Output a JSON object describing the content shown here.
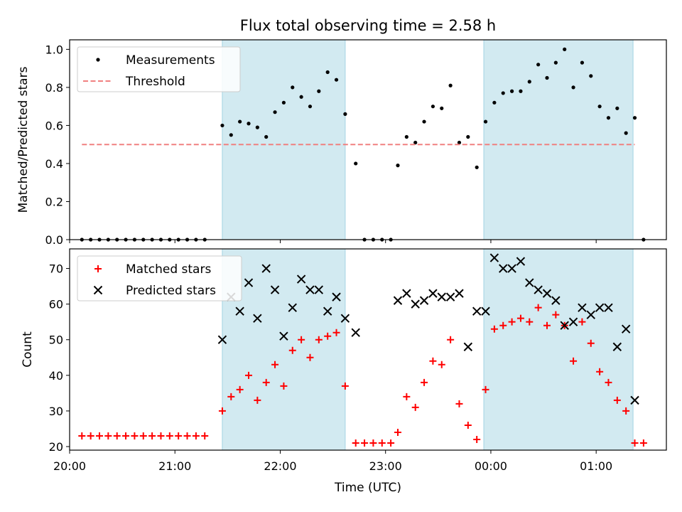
{
  "chart_data": [
    {
      "type": "scatter",
      "title": "Flux total observing time = 2.58 h",
      "xlabel": "",
      "ylabel": "Matched/Predicted stars",
      "ylim": [
        0,
        1.05
      ],
      "yticks": [
        "0.0",
        "0.2",
        "0.4",
        "0.6",
        "0.8",
        "1.0"
      ],
      "xlim": [
        "20:00",
        "01:40"
      ],
      "show_xtick_labels": false,
      "grid": false,
      "legend_position": "top-left",
      "shaded_intervals": [
        [
          "21:27",
          "22:37"
        ],
        [
          "23:56",
          "01:21"
        ]
      ],
      "series": [
        {
          "name": "Measurements",
          "marker": "dot",
          "color": "#000000",
          "points": [
            [
              "20:07",
              0.0
            ],
            [
              "20:12",
              0.0
            ],
            [
              "20:17",
              0.0
            ],
            [
              "20:22",
              0.0
            ],
            [
              "20:27",
              0.0
            ],
            [
              "20:32",
              0.0
            ],
            [
              "20:37",
              0.0
            ],
            [
              "20:42",
              0.0
            ],
            [
              "20:47",
              0.0
            ],
            [
              "20:52",
              0.0
            ],
            [
              "20:57",
              0.0
            ],
            [
              "21:02",
              0.0
            ],
            [
              "21:07",
              0.0
            ],
            [
              "21:12",
              0.0
            ],
            [
              "21:17",
              0.0
            ],
            [
              "21:27",
              0.6
            ],
            [
              "21:32",
              0.55
            ],
            [
              "21:37",
              0.62
            ],
            [
              "21:42",
              0.61
            ],
            [
              "21:47",
              0.59
            ],
            [
              "21:52",
              0.54
            ],
            [
              "21:57",
              0.67
            ],
            [
              "22:02",
              0.72
            ],
            [
              "22:07",
              0.8
            ],
            [
              "22:12",
              0.75
            ],
            [
              "22:17",
              0.7
            ],
            [
              "22:22",
              0.78
            ],
            [
              "22:27",
              0.88
            ],
            [
              "22:32",
              0.84
            ],
            [
              "22:37",
              0.66
            ],
            [
              "22:43",
              0.4
            ],
            [
              "22:48",
              0.0
            ],
            [
              "22:53",
              0.0
            ],
            [
              "22:58",
              0.0
            ],
            [
              "23:03",
              0.0
            ],
            [
              "23:07",
              0.39
            ],
            [
              "23:12",
              0.54
            ],
            [
              "23:17",
              0.51
            ],
            [
              "23:22",
              0.62
            ],
            [
              "23:27",
              0.7
            ],
            [
              "23:32",
              0.69
            ],
            [
              "23:37",
              0.81
            ],
            [
              "23:42",
              0.51
            ],
            [
              "23:47",
              0.54
            ],
            [
              "23:52",
              0.38
            ],
            [
              "23:57",
              0.62
            ],
            [
              "00:02",
              0.72
            ],
            [
              "00:07",
              0.77
            ],
            [
              "00:12",
              0.78
            ],
            [
              "00:17",
              0.78
            ],
            [
              "00:22",
              0.83
            ],
            [
              "00:27",
              0.92
            ],
            [
              "00:32",
              0.85
            ],
            [
              "00:37",
              0.93
            ],
            [
              "00:42",
              1.0
            ],
            [
              "00:47",
              0.8
            ],
            [
              "00:52",
              0.93
            ],
            [
              "00:57",
              0.86
            ],
            [
              "01:02",
              0.7
            ],
            [
              "01:07",
              0.64
            ],
            [
              "01:12",
              0.69
            ],
            [
              "01:17",
              0.56
            ],
            [
              "01:22",
              0.64
            ],
            [
              "01:27",
              0.0
            ]
          ]
        },
        {
          "name": "Threshold",
          "marker": "dashed-line",
          "color": "#f08080",
          "points": [
            [
              "20:07",
              0.5
            ],
            [
              "01:22",
              0.5
            ]
          ]
        }
      ]
    },
    {
      "type": "scatter",
      "title": "",
      "xlabel": "Time (UTC)",
      "ylabel": "Count",
      "ylim": [
        19,
        75.5
      ],
      "yticks": [
        "20",
        "30",
        "40",
        "50",
        "60",
        "70"
      ],
      "xlim": [
        "20:00",
        "01:40"
      ],
      "xticks": [
        "20:00",
        "21:00",
        "22:00",
        "23:00",
        "00:00",
        "01:00"
      ],
      "grid": false,
      "legend_position": "top-left",
      "shaded_intervals": [
        [
          "21:27",
          "22:37"
        ],
        [
          "23:56",
          "01:21"
        ]
      ],
      "series": [
        {
          "name": "Matched stars",
          "marker": "plus",
          "color": "#ff0000",
          "points": [
            [
              "20:07",
              23
            ],
            [
              "20:12",
              23
            ],
            [
              "20:17",
              23
            ],
            [
              "20:22",
              23
            ],
            [
              "20:27",
              23
            ],
            [
              "20:32",
              23
            ],
            [
              "20:37",
              23
            ],
            [
              "20:42",
              23
            ],
            [
              "20:47",
              23
            ],
            [
              "20:52",
              23
            ],
            [
              "20:57",
              23
            ],
            [
              "21:02",
              23
            ],
            [
              "21:07",
              23
            ],
            [
              "21:12",
              23
            ],
            [
              "21:17",
              23
            ],
            [
              "21:27",
              30
            ],
            [
              "21:32",
              34
            ],
            [
              "21:37",
              36
            ],
            [
              "21:42",
              40
            ],
            [
              "21:47",
              33
            ],
            [
              "21:52",
              38
            ],
            [
              "21:57",
              43
            ],
            [
              "22:02",
              37
            ],
            [
              "22:07",
              47
            ],
            [
              "22:12",
              50
            ],
            [
              "22:17",
              45
            ],
            [
              "22:22",
              50
            ],
            [
              "22:27",
              51
            ],
            [
              "22:32",
              52
            ],
            [
              "22:37",
              37
            ],
            [
              "22:43",
              21
            ],
            [
              "22:48",
              21
            ],
            [
              "22:53",
              21
            ],
            [
              "22:58",
              21
            ],
            [
              "23:03",
              21
            ],
            [
              "23:07",
              24
            ],
            [
              "23:12",
              34
            ],
            [
              "23:17",
              31
            ],
            [
              "23:22",
              38
            ],
            [
              "23:27",
              44
            ],
            [
              "23:32",
              43
            ],
            [
              "23:37",
              50
            ],
            [
              "23:42",
              32
            ],
            [
              "23:47",
              26
            ],
            [
              "23:52",
              22
            ],
            [
              "23:57",
              36
            ],
            [
              "00:02",
              53
            ],
            [
              "00:07",
              54
            ],
            [
              "00:12",
              55
            ],
            [
              "00:17",
              56
            ],
            [
              "00:22",
              55
            ],
            [
              "00:27",
              59
            ],
            [
              "00:32",
              54
            ],
            [
              "00:37",
              57
            ],
            [
              "00:42",
              54
            ],
            [
              "00:47",
              44
            ],
            [
              "00:52",
              55
            ],
            [
              "00:57",
              49
            ],
            [
              "01:02",
              41
            ],
            [
              "01:07",
              38
            ],
            [
              "01:12",
              33
            ],
            [
              "01:17",
              30
            ],
            [
              "01:22",
              21
            ],
            [
              "01:27",
              21
            ]
          ]
        },
        {
          "name": "Predicted stars",
          "marker": "x",
          "color": "#000000",
          "points": [
            [
              "21:27",
              50
            ],
            [
              "21:32",
              62
            ],
            [
              "21:37",
              58
            ],
            [
              "21:42",
              66
            ],
            [
              "21:47",
              56
            ],
            [
              "21:52",
              70
            ],
            [
              "21:57",
              64
            ],
            [
              "22:02",
              51
            ],
            [
              "22:07",
              59
            ],
            [
              "22:12",
              67
            ],
            [
              "22:17",
              64
            ],
            [
              "22:22",
              64
            ],
            [
              "22:27",
              58
            ],
            [
              "22:32",
              62
            ],
            [
              "22:37",
              56
            ],
            [
              "22:43",
              52
            ],
            [
              "23:07",
              61
            ],
            [
              "23:12",
              63
            ],
            [
              "23:17",
              60
            ],
            [
              "23:22",
              61
            ],
            [
              "23:27",
              63
            ],
            [
              "23:32",
              62
            ],
            [
              "23:37",
              62
            ],
            [
              "23:42",
              63
            ],
            [
              "23:47",
              48
            ],
            [
              "23:52",
              58
            ],
            [
              "23:57",
              58
            ],
            [
              "00:02",
              73
            ],
            [
              "00:07",
              70
            ],
            [
              "00:12",
              70
            ],
            [
              "00:17",
              72
            ],
            [
              "00:22",
              66
            ],
            [
              "00:27",
              64
            ],
            [
              "00:32",
              63
            ],
            [
              "00:37",
              61
            ],
            [
              "00:42",
              54
            ],
            [
              "00:47",
              55
            ],
            [
              "00:52",
              59
            ],
            [
              "00:57",
              57
            ],
            [
              "01:02",
              59
            ],
            [
              "01:07",
              59
            ],
            [
              "01:12",
              48
            ],
            [
              "01:17",
              53
            ],
            [
              "01:22",
              33
            ]
          ]
        }
      ]
    }
  ]
}
